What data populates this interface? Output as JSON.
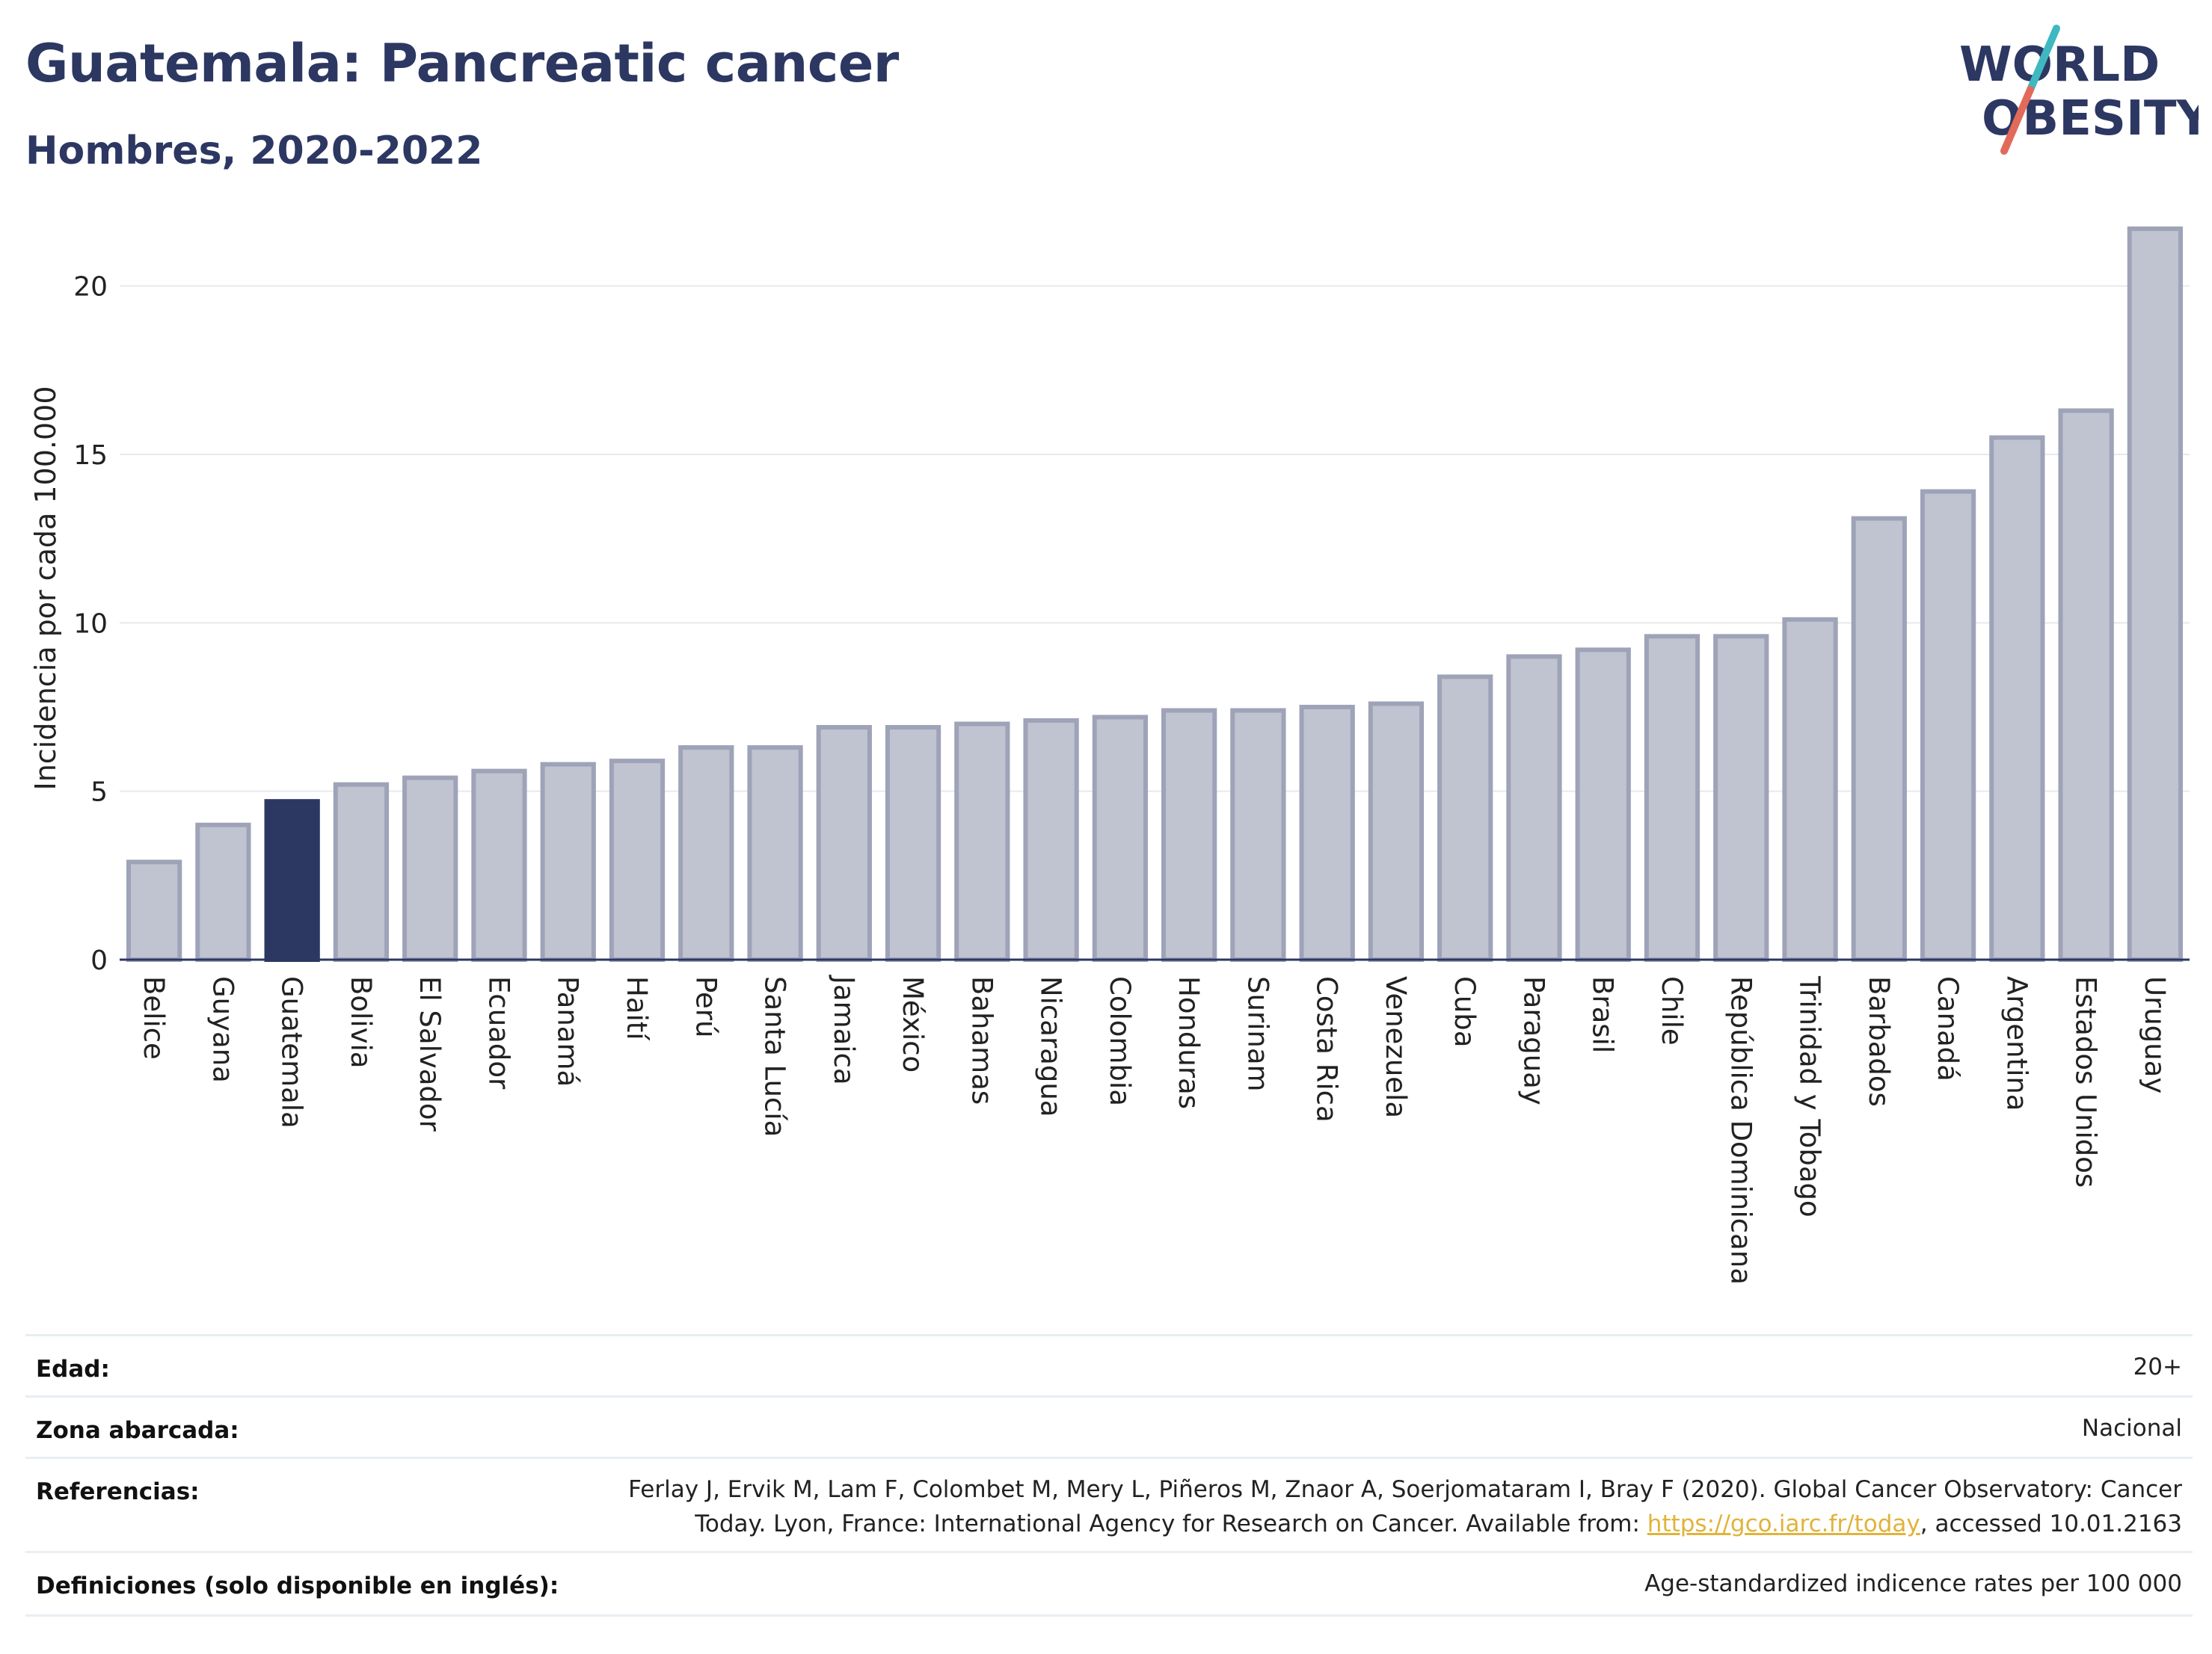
{
  "header": {
    "title": "Guatemala: Pancreatic cancer",
    "subtitle": "Hombres, 2020-2022"
  },
  "logo": {
    "line1": "WORLD",
    "line2": "OBESITY",
    "colors": {
      "text": "#2c3762",
      "slash_top": "#3fb8c0",
      "slash_bottom": "#e26a5a"
    }
  },
  "chart_data": {
    "type": "bar",
    "title": "Guatemala: Pancreatic cancer",
    "subtitle": "Hombres, 2020-2022",
    "ylabel": "Incidencia por cada 100.000",
    "xlabel": "",
    "ylim": [
      0,
      22.5
    ],
    "yticks": [
      0,
      5,
      10,
      15,
      20
    ],
    "grid": true,
    "highlight": "Guatemala",
    "colors": {
      "bar": "#c0c3d0",
      "bar_edge": "#9ea3b8",
      "highlight": "#2c3762"
    },
    "categories": [
      "Belice",
      "Guyana",
      "Guatemala",
      "Bolivia",
      "El Salvador",
      "Ecuador",
      "Panamá",
      "Haití",
      "Perú",
      "Santa Lucía",
      "Jamaica",
      "México",
      "Bahamas",
      "Nicaragua",
      "Colombia",
      "Honduras",
      "Surinam",
      "Costa Rica",
      "Venezuela",
      "Cuba",
      "Paraguay",
      "Brasil",
      "Chile",
      "República Dominicana",
      "Trinidad y Tobago",
      "Barbados",
      "Canadá",
      "Argentina",
      "Estados Unidos",
      "Uruguay"
    ],
    "values": [
      2.9,
      4.0,
      4.7,
      5.2,
      5.4,
      5.6,
      5.8,
      5.9,
      6.3,
      6.3,
      6.9,
      6.9,
      7.0,
      7.1,
      7.2,
      7.4,
      7.4,
      7.5,
      7.6,
      8.4,
      9.0,
      9.2,
      9.6,
      9.6,
      10.1,
      13.1,
      13.9,
      15.5,
      16.3,
      21.7
    ]
  },
  "meta": {
    "edad": {
      "label": "Edad:",
      "value": "20+"
    },
    "zona": {
      "label": "Zona abarcada:",
      "value": "Nacional"
    },
    "referencias": {
      "label": "Referencias:",
      "line1": "Ferlay J, Ervik M, Lam F, Colombet M, Mery L, Piñeros M, Znaor A, Soerjomataram I, Bray F (2020). Global Cancer Observatory: Cancer",
      "line2_pre": "Today. Lyon, France: International Agency for Research on Cancer. Available from: ",
      "link": "https://gco.iarc.fr/today",
      "line2_post": ", accessed 10.01.2163"
    },
    "definiciones": {
      "label": "Definiciones (solo disponible en inglés):",
      "value": "Age-standardized indicence rates per 100 000"
    }
  }
}
